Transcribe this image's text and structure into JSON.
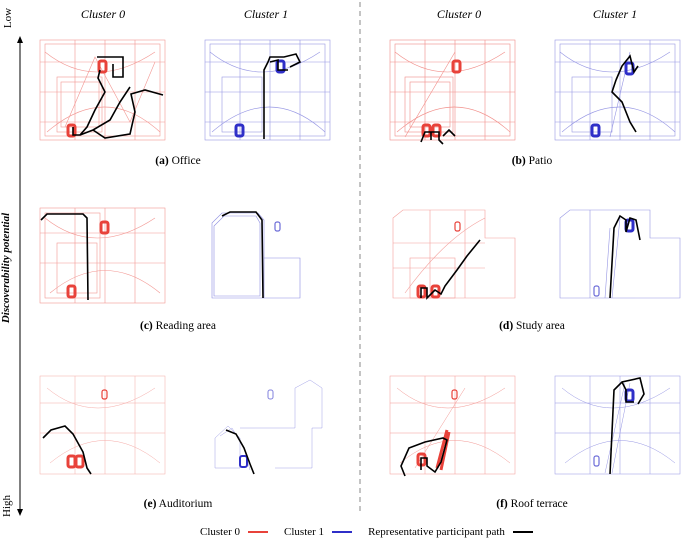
{
  "figure": {
    "column_headers": [
      "Cluster 0",
      "Cluster 1",
      "Cluster 0",
      "Cluster 1"
    ],
    "axis": {
      "title": "Discoverability potential",
      "low_label": "Low",
      "high_label": "High"
    },
    "panels": [
      {
        "letter": "(a)",
        "name": "Office"
      },
      {
        "letter": "(b)",
        "name": "Patio"
      },
      {
        "letter": "(c)",
        "name": "Reading area"
      },
      {
        "letter": "(d)",
        "name": "Study area"
      },
      {
        "letter": "(e)",
        "name": "Auditorium"
      },
      {
        "letter": "(f)",
        "name": "Roof terrace"
      }
    ],
    "legend": [
      {
        "label": "Cluster 0",
        "color": "#e8423a"
      },
      {
        "label": "Cluster 1",
        "color": "#2f2fc8"
      },
      {
        "label": "Representative participant path",
        "color": "#000000"
      }
    ]
  }
}
